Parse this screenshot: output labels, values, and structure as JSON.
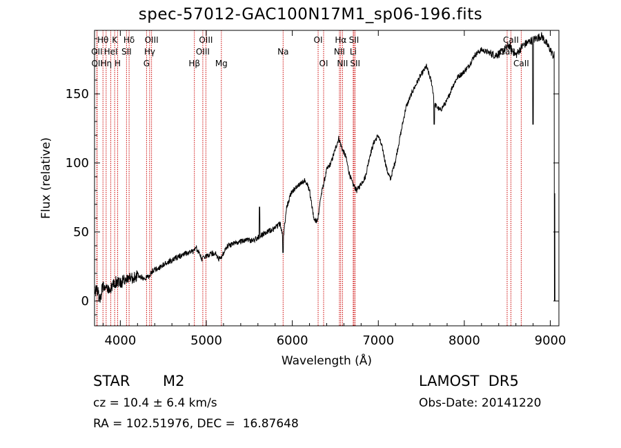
{
  "chart_data": {
    "type": "line",
    "title": "spec-57012-GAC100N17M1_sp06-196.fits",
    "xlabel": "Wavelength (Å)",
    "ylabel": "Flux (relative)",
    "xlim": [
      3700,
      9100
    ],
    "ylim": [
      -18,
      196
    ],
    "xticks": [
      4000,
      5000,
      6000,
      7000,
      8000,
      9000
    ],
    "yticks": [
      0,
      50,
      100,
      150
    ],
    "line_color": "#000000",
    "marker_color": "#cc0000",
    "lines": [
      {
        "label": "Hθ",
        "x": 3798,
        "row": 0
      },
      {
        "label": "K",
        "x": 3934,
        "row": 0
      },
      {
        "label": "Hδ",
        "x": 4102,
        "row": 0
      },
      {
        "label": "OII",
        "x": 3727,
        "row": 1
      },
      {
        "label": "HeI",
        "x": 3889,
        "row": 1
      },
      {
        "label": "SII",
        "x": 4072,
        "row": 1
      },
      {
        "label": "OIII",
        "x": 4363,
        "row": 0
      },
      {
        "label": "Hγ",
        "x": 4341,
        "row": 1
      },
      {
        "label": "G",
        "x": 4305,
        "row": 2
      },
      {
        "label": "OII",
        "x": 3730,
        "row": 2
      },
      {
        "label": "Hη",
        "x": 3835,
        "row": 2
      },
      {
        "label": "H",
        "x": 3969,
        "row": 2
      },
      {
        "label": "OIII",
        "x": 4995,
        "row": 0
      },
      {
        "label": "OIII",
        "x": 4959,
        "row": 1
      },
      {
        "label": "Hβ",
        "x": 4861,
        "row": 2
      },
      {
        "label": "Mg",
        "x": 5175,
        "row": 2
      },
      {
        "label": "Na",
        "x": 5893,
        "row": 1
      },
      {
        "label": "OI",
        "x": 6300,
        "row": 0
      },
      {
        "label": "OI",
        "x": 6364,
        "row": 2
      },
      {
        "label": "Hα",
        "x": 6563,
        "row": 0
      },
      {
        "label": "SII",
        "x": 6717,
        "row": 0
      },
      {
        "label": "NII",
        "x": 6548,
        "row": 1
      },
      {
        "label": "Li",
        "x": 6708,
        "row": 1
      },
      {
        "label": "NII",
        "x": 6584,
        "row": 2
      },
      {
        "label": "SII",
        "x": 6731,
        "row": 2
      },
      {
        "label": "CaII",
        "x": 8542,
        "row": 0
      },
      {
        "label": "CaII",
        "x": 8498,
        "row": 1
      },
      {
        "label": "CaII",
        "x": 8662,
        "row": 2
      }
    ],
    "anchors": [
      [
        3705,
        5
      ],
      [
        3730,
        10
      ],
      [
        3760,
        0
      ],
      [
        3800,
        12
      ],
      [
        3850,
        8
      ],
      [
        3900,
        10
      ],
      [
        3950,
        14
      ],
      [
        4000,
        12
      ],
      [
        4050,
        16
      ],
      [
        4100,
        18
      ],
      [
        4150,
        16
      ],
      [
        4200,
        19
      ],
      [
        4280,
        16
      ],
      [
        4330,
        18
      ],
      [
        4380,
        22
      ],
      [
        4450,
        24
      ],
      [
        4550,
        28
      ],
      [
        4650,
        31
      ],
      [
        4750,
        34
      ],
      [
        4850,
        36
      ],
      [
        4880,
        39
      ],
      [
        4950,
        30
      ],
      [
        5000,
        33
      ],
      [
        5100,
        35
      ],
      [
        5150,
        30
      ],
      [
        5200,
        35
      ],
      [
        5250,
        40
      ],
      [
        5350,
        42
      ],
      [
        5450,
        44
      ],
      [
        5550,
        44
      ],
      [
        5620,
        47
      ],
      [
        5700,
        50
      ],
      [
        5780,
        52
      ],
      [
        5860,
        56
      ],
      [
        5893,
        45
      ],
      [
        5930,
        67
      ],
      [
        5980,
        77
      ],
      [
        6050,
        83
      ],
      [
        6100,
        85
      ],
      [
        6150,
        88
      ],
      [
        6200,
        80
      ],
      [
        6250,
        60
      ],
      [
        6290,
        57
      ],
      [
        6330,
        75
      ],
      [
        6400,
        95
      ],
      [
        6450,
        100
      ],
      [
        6500,
        110
      ],
      [
        6540,
        118
      ],
      [
        6580,
        110
      ],
      [
        6620,
        105
      ],
      [
        6660,
        93
      ],
      [
        6700,
        85
      ],
      [
        6750,
        80
      ],
      [
        6800,
        85
      ],
      [
        6850,
        90
      ],
      [
        6900,
        105
      ],
      [
        6950,
        115
      ],
      [
        7000,
        120
      ],
      [
        7050,
        110
      ],
      [
        7100,
        95
      ],
      [
        7140,
        88
      ],
      [
        7200,
        102
      ],
      [
        7250,
        118
      ],
      [
        7320,
        140
      ],
      [
        7400,
        152
      ],
      [
        7480,
        162
      ],
      [
        7560,
        170
      ],
      [
        7620,
        158
      ],
      [
        7660,
        142
      ],
      [
        7720,
        138
      ],
      [
        7800,
        145
      ],
      [
        7860,
        155
      ],
      [
        7920,
        162
      ],
      [
        7980,
        165
      ],
      [
        8050,
        170
      ],
      [
        8120,
        178
      ],
      [
        8200,
        182
      ],
      [
        8280,
        180
      ],
      [
        8360,
        178
      ],
      [
        8430,
        180
      ],
      [
        8520,
        185
      ],
      [
        8600,
        178
      ],
      [
        8680,
        185
      ],
      [
        8760,
        188
      ],
      [
        8830,
        190
      ],
      [
        8900,
        192
      ],
      [
        8960,
        186
      ],
      [
        9000,
        182
      ],
      [
        9030,
        178
      ]
    ],
    "features": [
      {
        "x": 5620,
        "peak": 68,
        "kind": "spike"
      },
      {
        "x": 5893,
        "peak": 35,
        "kind": "dip"
      },
      {
        "x": 7650,
        "peak": 128,
        "kind": "dip"
      },
      {
        "x": 8800,
        "peak": 128,
        "kind": "dip"
      },
      {
        "x": 9050,
        "peak": 0,
        "kind": "drop"
      }
    ]
  },
  "info": {
    "class_label": "STAR",
    "subclass_label": "M2",
    "survey_label": "LAMOST  DR5",
    "cz_text": "cz = 10.4 ± 6.4 km/s",
    "obs_date_text": "Obs-Date: 20141220",
    "radec_text": "RA = 102.51976, DEC =  16.87648"
  }
}
